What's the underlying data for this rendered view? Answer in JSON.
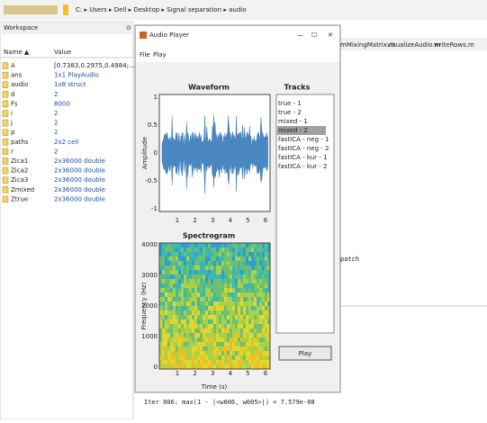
{
  "toolbar": {
    "path": "C: ▸ Users ▸ Dell ▸ Desktop ▸ Signal separation ▸ audio"
  },
  "workspace": {
    "title": "Workspace",
    "columns": [
      "Name ▲",
      "Value"
    ],
    "rows": [
      [
        "A",
        "[0.7383,0.2975,0.4984;..."
      ],
      [
        "ans",
        "1x1 PlayAudio"
      ],
      [
        "audio",
        "1x8 struct"
      ],
      [
        "d",
        "2"
      ],
      [
        "Fs",
        "8000"
      ],
      [
        "i",
        "2"
      ],
      [
        "j",
        "2"
      ],
      [
        "p",
        "2"
      ],
      [
        "paths",
        "2x2 cell"
      ],
      [
        "r",
        "2"
      ],
      [
        "Zica1",
        "2x36000 double"
      ],
      [
        "Zica2",
        "2x36000 double"
      ],
      [
        "Zica3",
        "2x36000 double"
      ],
      [
        "Zmixed",
        "2x36000 double"
      ],
      [
        "Ztrue",
        "2x36000 double"
      ]
    ]
  },
  "editor": {
    "tabs": [
      "mMixingMatrix.m",
      "visualizeAudio.m",
      "writeRows.m"
    ],
    "snippet": "patch"
  },
  "command": {
    "line": "Iter 006: max(1 - |<w006, w005>|) = 7.579e-08"
  },
  "player": {
    "title": "Audio Player",
    "menu": [
      "File",
      "Play"
    ],
    "waveform": {
      "title": "Waveform",
      "ylabel": "Amplitude",
      "yticks": [
        "1",
        "0.5",
        "0",
        "-0.5",
        "-1"
      ],
      "xticks": [
        "1",
        "2",
        "3",
        "4",
        "5",
        "6"
      ]
    },
    "spectrogram": {
      "title": "Spectrogram",
      "ylabel": "Frequency (Hz)",
      "xlabel": "Time (s)",
      "yticks": [
        "4000",
        "3000",
        "2000",
        "1000",
        "0"
      ],
      "xticks": [
        "1",
        "2",
        "3",
        "4",
        "5",
        "6"
      ]
    },
    "tracks": {
      "title": "Tracks",
      "items": [
        "true - 1",
        "true - 2",
        "mixed - 1",
        "mixed - 2",
        "fastICA - neg - 1",
        "fastICA - neg - 2",
        "fastICA - kur - 1",
        "fastICA - kur - 2"
      ],
      "selected": 3
    },
    "button": "Play"
  }
}
